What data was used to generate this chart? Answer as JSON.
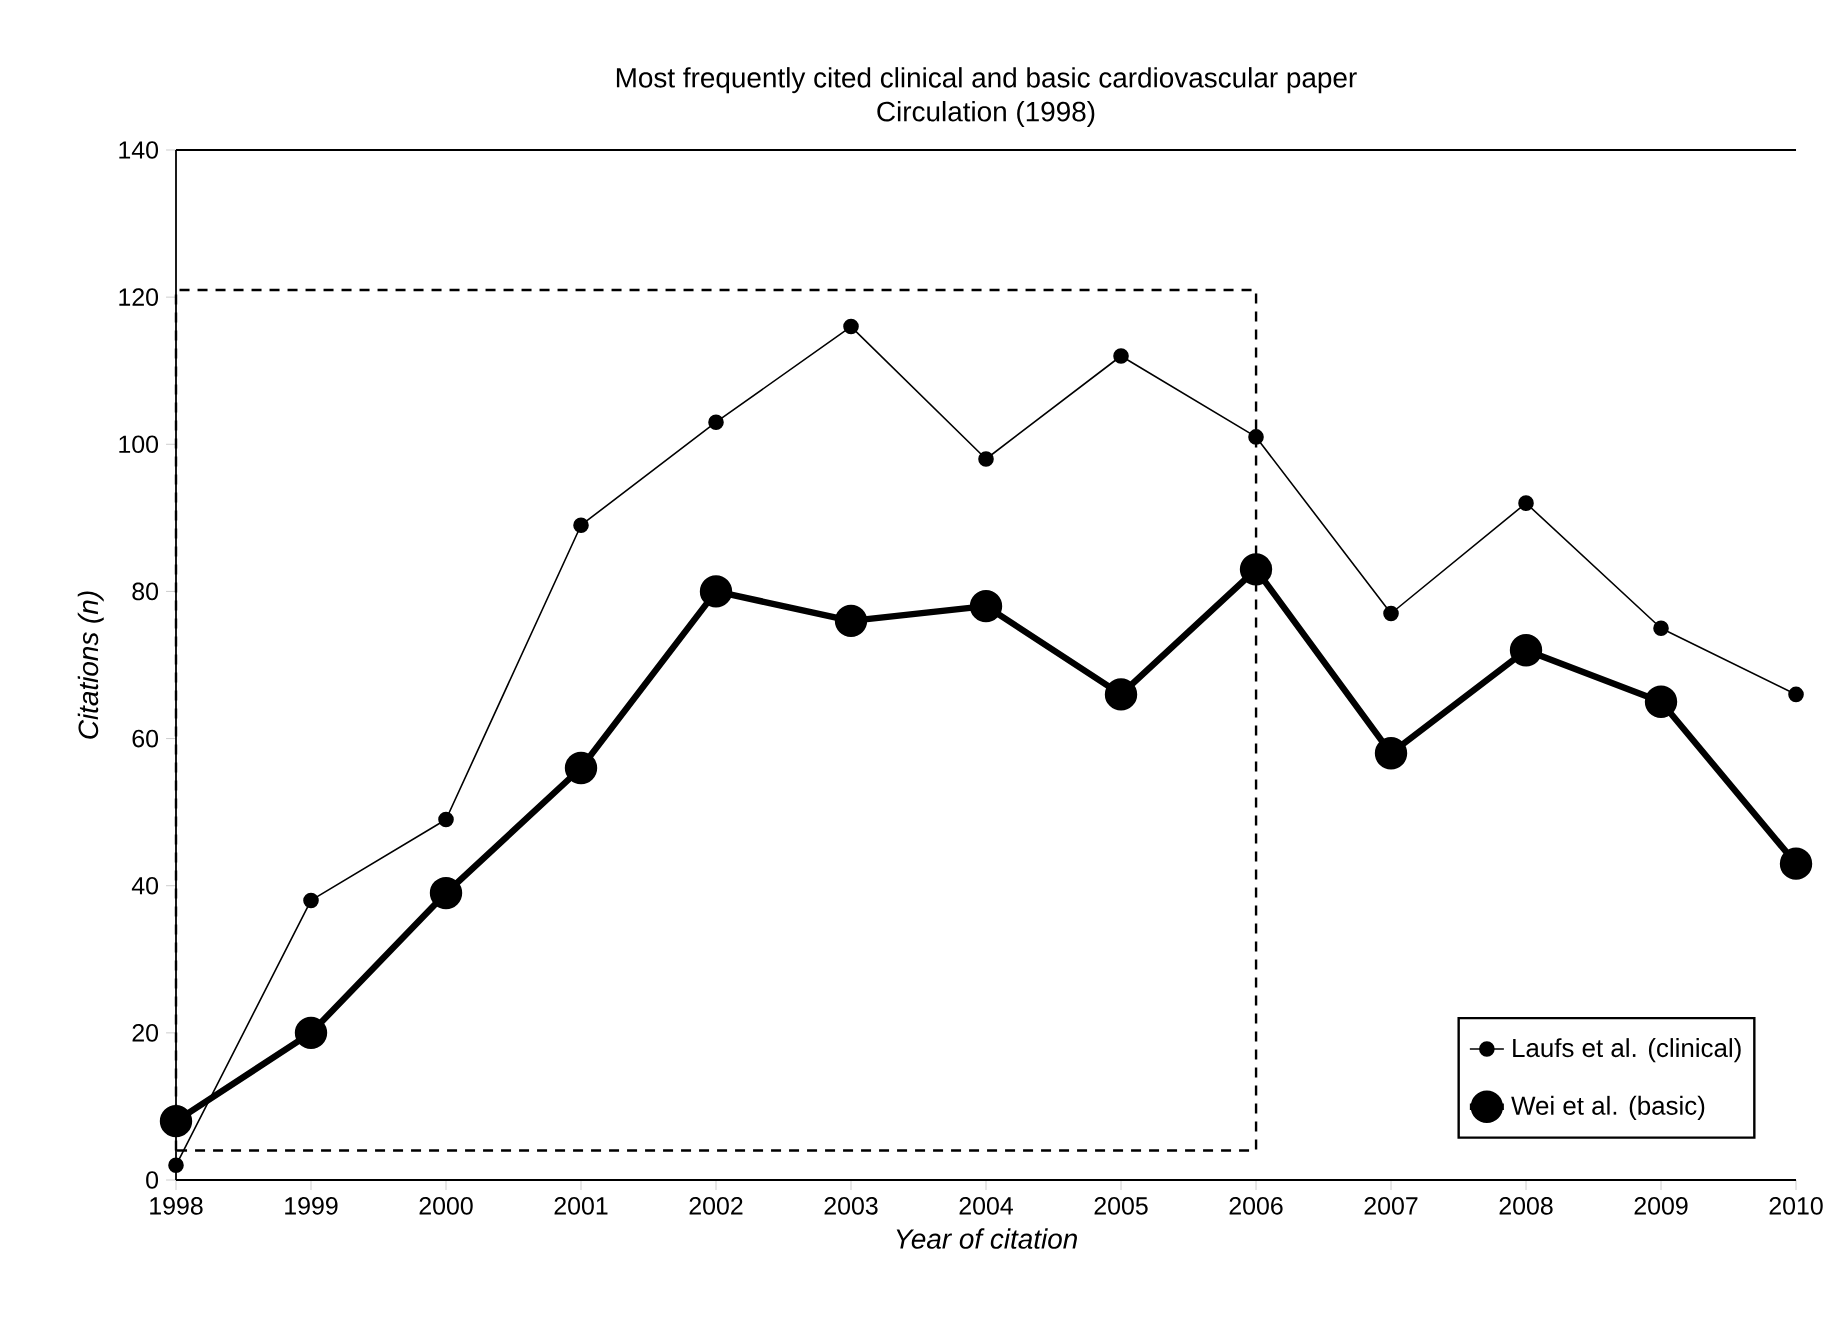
{
  "chart_data": {
    "type": "line",
    "title": "Most frequently cited clinical and basic cardiovascular paper",
    "subtitle": "Circulation (1998)",
    "xlabel": "Year of citation",
    "ylabel": "Citations (n)",
    "x": [
      1998,
      1999,
      2000,
      2001,
      2002,
      2003,
      2004,
      2005,
      2006,
      2007,
      2008,
      2009,
      2010
    ],
    "series": [
      {
        "name": "Laufs et al. (clinical)",
        "color": "#000000",
        "values": [
          2,
          38,
          49,
          89,
          103,
          116,
          98,
          112,
          101,
          77,
          92,
          75,
          66
        ]
      },
      {
        "name": "Wei et al. (basic)",
        "color": "#000000",
        "values": [
          8,
          20,
          39,
          56,
          80,
          76,
          78,
          66,
          83,
          58,
          72,
          65,
          43
        ]
      }
    ],
    "xlim": [
      1998,
      2010
    ],
    "xticks": [
      1998,
      1999,
      2000,
      2001,
      2002,
      2003,
      2004,
      2005,
      2006,
      2007,
      2008,
      2009,
      2010
    ],
    "ylim": [
      0,
      140
    ],
    "yticks": [
      0,
      20,
      40,
      60,
      80,
      100,
      120,
      140
    ],
    "legend": "bottom right",
    "marker": "circle",
    "line_style": "solid",
    "grid": false
  }
}
